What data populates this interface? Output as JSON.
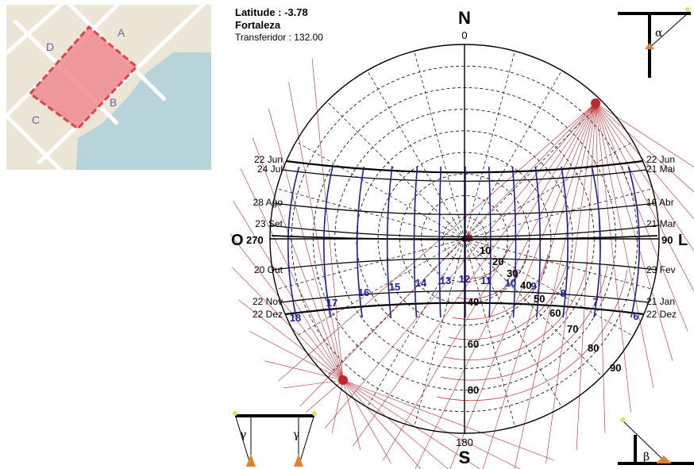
{
  "map": {
    "corner_labels": {
      "a": "A",
      "b": "B",
      "c": "C",
      "d": "D"
    },
    "label_color": "#6d63a8",
    "colors": {
      "land": "#ece6d6",
      "water": "#b7d4da",
      "road": "#ffffff",
      "lot": "#f08a8f",
      "lot_border": "#e0404a"
    }
  },
  "header": {
    "latitude": "Latitude :  -3.78",
    "city": "Fortaleza",
    "protractor": "Transferidor : 132.00"
  },
  "compass": {
    "n_letter": "N",
    "n_deg": "0",
    "s_letter": "S",
    "s_deg": "180",
    "e_letter": "L",
    "e_deg": "90",
    "w_letter": "O",
    "w_deg": "270"
  },
  "dates_left": [
    "22 Jun",
    "24 Jul",
    "28 Ago",
    "23 Set",
    "20 Out",
    "22 Nov",
    "22 Dez"
  ],
  "dates_right": [
    "22 Jun",
    "21 Mai",
    "16 Abr",
    "21 Mar",
    "23 Fev",
    "21 Jan",
    "22 Dez"
  ],
  "hours": [
    "6",
    "7",
    "8",
    "9",
    "10",
    "11",
    "12",
    "13",
    "14",
    "15",
    "16",
    "17",
    "18"
  ],
  "protractor_labels": [
    "10",
    "20",
    "30",
    "40",
    "50",
    "60",
    "70",
    "80",
    "90"
  ],
  "altitude_labels": [
    "40",
    "60",
    "80"
  ],
  "angle_symbols": {
    "alpha": "α",
    "beta": "β",
    "gamma": "γ"
  },
  "colors": {
    "hour_line": "#1a1aa8",
    "hour_label": "#1a1aa8",
    "protractor": "#c0282b",
    "grid": "#000000"
  }
}
